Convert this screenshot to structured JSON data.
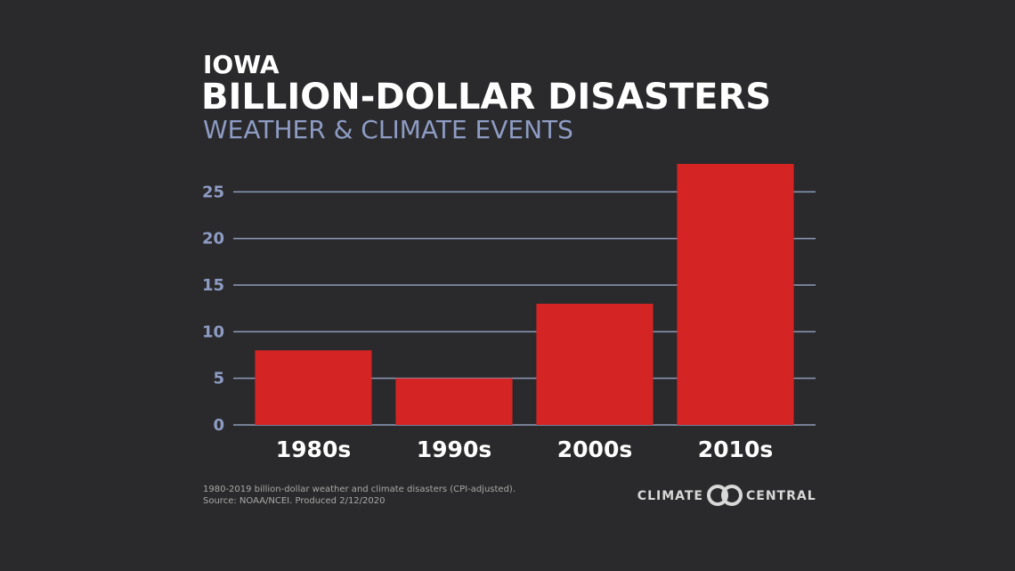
{
  "chart_data": {
    "type": "bar",
    "supertitle": "IOWA",
    "title": "BILLION-DOLLAR DISASTERS",
    "subtitle": "WEATHER & CLIMATE EVENTS",
    "categories": [
      "1980s",
      "1990s",
      "2000s",
      "2010s"
    ],
    "values": [
      8,
      5,
      13,
      28
    ],
    "color": "#d42424",
    "ylim": [
      0,
      28
    ],
    "yticks": [
      0,
      5,
      10,
      15,
      20,
      25
    ],
    "grid": true,
    "footnote": [
      "1980-2019 billion-dollar weather and climate disasters (CPI-adjusted).",
      "Source: NOAA/NCEI. Produced 2/12/2020"
    ],
    "logo": [
      "CLIMATE",
      "CENTRAL"
    ]
  }
}
